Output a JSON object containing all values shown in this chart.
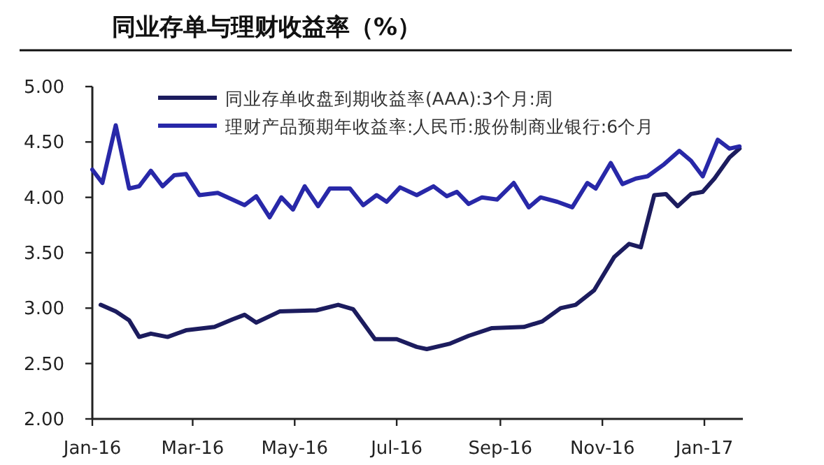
{
  "chart_data": {
    "type": "line",
    "title": "同业存单与理财收益率（%）",
    "legend": "top left",
    "line_style": "solid",
    "xlim": [
      "2016-01-01",
      "2017-01-24"
    ],
    "xticks": [
      {
        "value": "2016-01-01",
        "label": "Jan-16"
      },
      {
        "value": "2016-03-01",
        "label": "Mar-16"
      },
      {
        "value": "2016-05-01",
        "label": "May-16"
      },
      {
        "value": "2016-07-01",
        "label": "Jul-16"
      },
      {
        "value": "2016-09-01",
        "label": "Sep-16"
      },
      {
        "value": "2016-11-01",
        "label": "Nov-16"
      },
      {
        "value": "2017-01-01",
        "label": "Jan-17"
      }
    ],
    "ylim": [
      2,
      5
    ],
    "yticks": [
      {
        "value": 2,
        "label": "2.00"
      },
      {
        "value": 2.5,
        "label": "2.50"
      },
      {
        "value": 3,
        "label": "3.00"
      },
      {
        "value": 3.5,
        "label": "3.50"
      },
      {
        "value": 4,
        "label": "4.00"
      },
      {
        "value": 4.5,
        "label": "4.50"
      },
      {
        "value": 5,
        "label": "5.00"
      }
    ],
    "series": [
      {
        "name": "同业存单收盘到期收益率(AAA):3个月:周",
        "color": "#1c1c5e",
        "x": [
          "2016-01-06",
          "2016-01-15",
          "2016-01-23",
          "2016-01-29",
          "2016-02-05",
          "2016-02-15",
          "2016-02-26",
          "2016-03-14",
          "2016-03-25",
          "2016-04-01",
          "2016-04-08",
          "2016-04-22",
          "2016-05-14",
          "2016-05-27",
          "2016-06-05",
          "2016-06-18",
          "2016-07-01",
          "2016-07-13",
          "2016-07-19",
          "2016-08-02",
          "2016-08-13",
          "2016-08-27",
          "2016-09-15",
          "2016-09-26",
          "2016-10-07",
          "2016-10-16",
          "2016-10-27",
          "2016-11-08",
          "2016-11-17",
          "2016-11-24",
          "2016-12-02",
          "2016-12-09",
          "2016-12-16",
          "2016-12-24",
          "2016-12-31",
          "2017-01-07",
          "2017-01-16",
          "2017-01-22"
        ],
        "values": [
          3.03,
          2.97,
          2.89,
          2.74,
          2.77,
          2.74,
          2.8,
          2.83,
          2.9,
          2.94,
          2.87,
          2.97,
          2.98,
          3.03,
          2.99,
          2.72,
          2.72,
          2.65,
          2.63,
          2.68,
          2.75,
          2.82,
          2.83,
          2.88,
          3.0,
          3.03,
          3.16,
          3.46,
          3.58,
          3.55,
          4.02,
          4.03,
          3.92,
          4.03,
          4.05,
          4.17,
          4.36,
          4.44
        ]
      },
      {
        "name": "理财产品预期年收益率:人民币:股份制商业银行:6个月",
        "color": "#2828a8",
        "x": [
          "2016-01-01",
          "2016-01-07",
          "2016-01-15",
          "2016-01-23",
          "2016-01-29",
          "2016-02-05",
          "2016-02-12",
          "2016-02-19",
          "2016-02-26",
          "2016-03-05",
          "2016-03-16",
          "2016-04-01",
          "2016-04-08",
          "2016-04-16",
          "2016-04-23",
          "2016-04-30",
          "2016-05-07",
          "2016-05-15",
          "2016-05-22",
          "2016-06-03",
          "2016-06-11",
          "2016-06-19",
          "2016-06-25",
          "2016-07-03",
          "2016-07-13",
          "2016-07-23",
          "2016-07-31",
          "2016-08-06",
          "2016-08-13",
          "2016-08-21",
          "2016-08-30",
          "2016-09-09",
          "2016-09-18",
          "2016-09-25",
          "2016-10-05",
          "2016-10-14",
          "2016-10-23",
          "2016-10-28",
          "2016-11-06",
          "2016-11-13",
          "2016-11-21",
          "2016-11-28",
          "2016-12-08",
          "2016-12-17",
          "2016-12-24",
          "2016-12-31",
          "2017-01-09",
          "2017-01-16",
          "2017-01-22"
        ],
        "values": [
          4.25,
          4.13,
          4.65,
          4.08,
          4.1,
          4.24,
          4.1,
          4.2,
          4.21,
          4.02,
          4.04,
          3.93,
          4.01,
          3.82,
          4.0,
          3.89,
          4.1,
          3.92,
          4.08,
          4.08,
          3.93,
          4.02,
          3.96,
          4.09,
          4.02,
          4.1,
          4.01,
          4.05,
          3.94,
          4.0,
          3.98,
          4.13,
          3.91,
          4.0,
          3.96,
          3.91,
          4.13,
          4.08,
          4.31,
          4.12,
          4.17,
          4.19,
          4.3,
          4.42,
          4.33,
          4.19,
          4.52,
          4.44,
          4.46
        ]
      }
    ]
  }
}
